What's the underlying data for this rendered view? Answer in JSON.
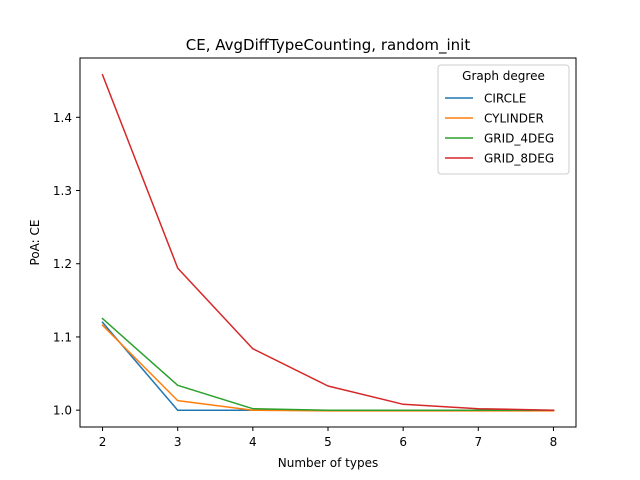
{
  "chart_data": {
    "type": "line",
    "title": "CE, AvgDiffTypeCounting, random_init",
    "xlabel": "Number of types",
    "ylabel": "PoA: CE",
    "x": [
      2,
      3,
      4,
      5,
      6,
      7,
      8
    ],
    "xlim": [
      1.7,
      8.3
    ],
    "ylim": [
      0.977,
      1.481
    ],
    "xticks": [
      2,
      3,
      4,
      5,
      6,
      7,
      8
    ],
    "yticks": [
      1.0,
      1.1,
      1.2,
      1.3,
      1.4
    ],
    "ytick_labels": [
      "1.0",
      "1.1",
      "1.2",
      "1.3",
      "1.4"
    ],
    "grid": false,
    "legend": {
      "title": "Graph degree",
      "position": "top-right"
    },
    "series": [
      {
        "name": "CIRCLE",
        "color": "#1f77b4",
        "values": [
          1.12,
          1.0,
          1.0,
          1.0,
          1.0,
          1.0,
          1.0
        ]
      },
      {
        "name": "CYLINDER",
        "color": "#ff7f0e",
        "values": [
          1.116,
          1.013,
          1.0,
          0.999,
          0.999,
          0.999,
          0.999
        ]
      },
      {
        "name": "GRID_4DEG",
        "color": "#2ca02c",
        "values": [
          1.125,
          1.034,
          1.002,
          1.0,
          1.0,
          1.0,
          1.0
        ]
      },
      {
        "name": "GRID_8DEG",
        "color": "#d62728",
        "values": [
          1.458,
          1.194,
          1.084,
          1.033,
          1.008,
          1.002,
          1.0
        ]
      }
    ]
  }
}
